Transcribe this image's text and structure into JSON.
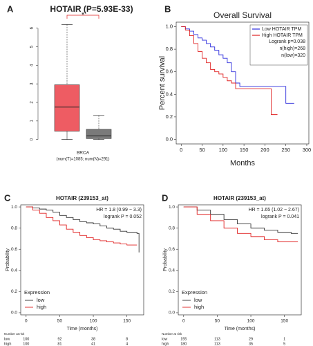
{
  "chart_data": [
    {
      "panel": "A",
      "type": "box",
      "title": "HOTAIR (P=5.93E-33)",
      "xlabel": "BRCA",
      "xsublabel": "(num(T)=1085; num(N)=291)",
      "annotation": "*",
      "ylim": [
        -0.2,
        6.4
      ],
      "yticks": [
        0,
        1,
        2,
        3,
        4,
        5,
        6
      ],
      "boxes": [
        {
          "color": "#ee5c63",
          "min": 0,
          "q1": 0.45,
          "median": 1.75,
          "q3": 2.95,
          "max": 6.2
        },
        {
          "color": "#7a7a7a",
          "min": 0,
          "q1": 0.05,
          "median": 0.2,
          "q3": 0.55,
          "max": 1.3
        }
      ]
    },
    {
      "panel": "B",
      "type": "survival",
      "title": "Overall Survival",
      "xlabel": "Months",
      "ylabel": "Percent survival",
      "xlim": [
        -12,
        305
      ],
      "ylim": [
        -0.04,
        1.04
      ],
      "xticks": [
        0,
        50,
        100,
        150,
        200,
        250,
        300
      ],
      "yticks": [
        {
          "value": 0,
          "label": "0.0"
        },
        {
          "value": 0.2,
          "label": "0.2"
        },
        {
          "value": 0.4,
          "label": "0.4"
        },
        {
          "value": 0.6,
          "label": "0.6"
        },
        {
          "value": 0.8,
          "label": "0.8"
        },
        {
          "value": 1,
          "label": "1.0"
        }
      ],
      "legend_notes": [
        "Logrank p=0.038",
        "n(high)=268",
        "n(low)=320"
      ],
      "series": [
        {
          "name": "Low HOTAIR TPM",
          "color": "#2b2bdc",
          "x": [
            0,
            10,
            20,
            30,
            40,
            50,
            60,
            70,
            80,
            90,
            100,
            110,
            120,
            130,
            140,
            150,
            180,
            200,
            240,
            250,
            270
          ],
          "values": [
            1,
            0.98,
            0.96,
            0.93,
            0.9,
            0.88,
            0.85,
            0.82,
            0.79,
            0.75,
            0.72,
            0.68,
            0.6,
            0.5,
            0.47,
            0.47,
            0.47,
            0.47,
            0.47,
            0.32,
            0.32
          ]
        },
        {
          "name": "High HOTAIR TPM",
          "color": "#e02020",
          "x": [
            0,
            10,
            20,
            30,
            40,
            50,
            60,
            70,
            80,
            90,
            100,
            110,
            120,
            130,
            150,
            215,
            230
          ],
          "values": [
            1,
            0.97,
            0.92,
            0.85,
            0.78,
            0.72,
            0.68,
            0.62,
            0.6,
            0.58,
            0.55,
            0.52,
            0.5,
            0.45,
            0.45,
            0.22,
            0.22
          ]
        }
      ]
    },
    {
      "panel": "C",
      "type": "survival",
      "title": "HOTAIR (239153_at)",
      "xlabel": "Time (months)",
      "ylabel": "Probability",
      "notes": [
        "HR = 1.8 (0.99 − 3.3)",
        "logrank P = 0.052"
      ],
      "legend_title": "Expression",
      "xlim": [
        -8,
        175
      ],
      "ylim": [
        -0.02,
        1.02
      ],
      "xticks": [
        0,
        50,
        100,
        150
      ],
      "yticks": [
        {
          "value": 0,
          "label": "0.0"
        },
        {
          "value": 0.2,
          "label": "0.2"
        },
        {
          "value": 0.4,
          "label": "0.4"
        },
        {
          "value": 0.6,
          "label": "0.6"
        },
        {
          "value": 0.8,
          "label": "0.8"
        },
        {
          "value": 1,
          "label": "1.0"
        }
      ],
      "series": [
        {
          "name": "low",
          "color": "#333333",
          "x": [
            0,
            10,
            20,
            30,
            40,
            50,
            60,
            70,
            80,
            90,
            100,
            110,
            120,
            130,
            140,
            150,
            165,
            168
          ],
          "values": [
            1,
            0.99,
            0.98,
            0.97,
            0.95,
            0.92,
            0.9,
            0.88,
            0.86,
            0.85,
            0.84,
            0.82,
            0.8,
            0.79,
            0.77,
            0.76,
            0.75,
            0.57
          ]
        },
        {
          "name": "high",
          "color": "#e02020",
          "x": [
            0,
            10,
            20,
            30,
            40,
            50,
            60,
            70,
            80,
            90,
            100,
            110,
            120,
            130,
            140,
            150,
            165
          ],
          "values": [
            1,
            0.97,
            0.94,
            0.9,
            0.87,
            0.83,
            0.79,
            0.76,
            0.73,
            0.71,
            0.69,
            0.68,
            0.67,
            0.66,
            0.65,
            0.64,
            0.64
          ]
        }
      ],
      "risk_table": {
        "title": "Number at risk",
        "rows": [
          {
            "name": "low",
            "values": [
              "100",
              "92",
              "38",
              "8"
            ]
          },
          {
            "name": "high",
            "values": [
              "100",
              "81",
              "41",
              "4"
            ]
          }
        ]
      }
    },
    {
      "panel": "D",
      "type": "survival",
      "title": "HOTAIR (239153_at)",
      "xlabel": "Time (months)",
      "ylabel": "Probability",
      "notes": [
        "HR = 1.65 (1.02 − 2.67)",
        "logrank P = 0.041"
      ],
      "legend_title": "Expression",
      "xlim": [
        -8,
        175
      ],
      "ylim": [
        -0.02,
        1.02
      ],
      "xticks": [
        0,
        50,
        100,
        150
      ],
      "yticks": [
        {
          "value": 0,
          "label": "0.0"
        },
        {
          "value": 0.2,
          "label": "0.2"
        },
        {
          "value": 0.4,
          "label": "0.4"
        },
        {
          "value": 0.6,
          "label": "0.6"
        },
        {
          "value": 0.8,
          "label": "0.8"
        },
        {
          "value": 1,
          "label": "1.0"
        }
      ],
      "series": [
        {
          "name": "low",
          "color": "#333333",
          "x": [
            0,
            20,
            40,
            60,
            80,
            100,
            120,
            140,
            160,
            170
          ],
          "values": [
            1,
            0.97,
            0.93,
            0.88,
            0.84,
            0.8,
            0.78,
            0.76,
            0.75,
            0.75
          ]
        },
        {
          "name": "high",
          "color": "#e02020",
          "x": [
            0,
            20,
            40,
            60,
            80,
            100,
            120,
            140,
            160,
            170
          ],
          "values": [
            1,
            0.93,
            0.87,
            0.8,
            0.75,
            0.72,
            0.69,
            0.67,
            0.67,
            0.67
          ]
        }
      ],
      "risk_table": {
        "title": "Number at risk",
        "rows": [
          {
            "name": "low",
            "values": [
              "155",
              "113",
              "29",
              "1"
            ]
          },
          {
            "name": "high",
            "values": [
              "180",
              "113",
              "35",
              "5"
            ]
          }
        ]
      }
    }
  ]
}
